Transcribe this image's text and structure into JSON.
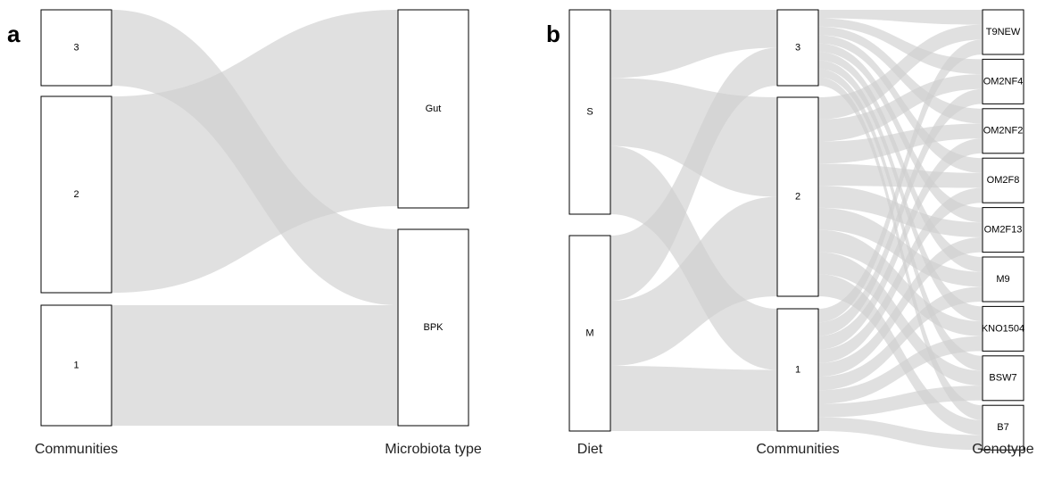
{
  "panels": [
    {
      "label": "a",
      "axes": [
        "Communities",
        "Microbiota type"
      ],
      "columns": [
        {
          "nodes": [
            "3",
            "2",
            "1"
          ]
        },
        {
          "nodes": [
            "Gut",
            "BPK"
          ]
        }
      ]
    },
    {
      "label": "b",
      "axes": [
        "Diet",
        "Communities",
        "Genotype"
      ],
      "columns": [
        {
          "nodes": [
            "S",
            "M"
          ]
        },
        {
          "nodes": [
            "3",
            "2",
            "1"
          ]
        },
        {
          "nodes": [
            "T9NEW",
            "OM2NF4",
            "OM2NF2",
            "OM2F8",
            "OM2F13",
            "M9",
            "KNO1504",
            "BSW7",
            "B7"
          ]
        }
      ]
    }
  ]
}
